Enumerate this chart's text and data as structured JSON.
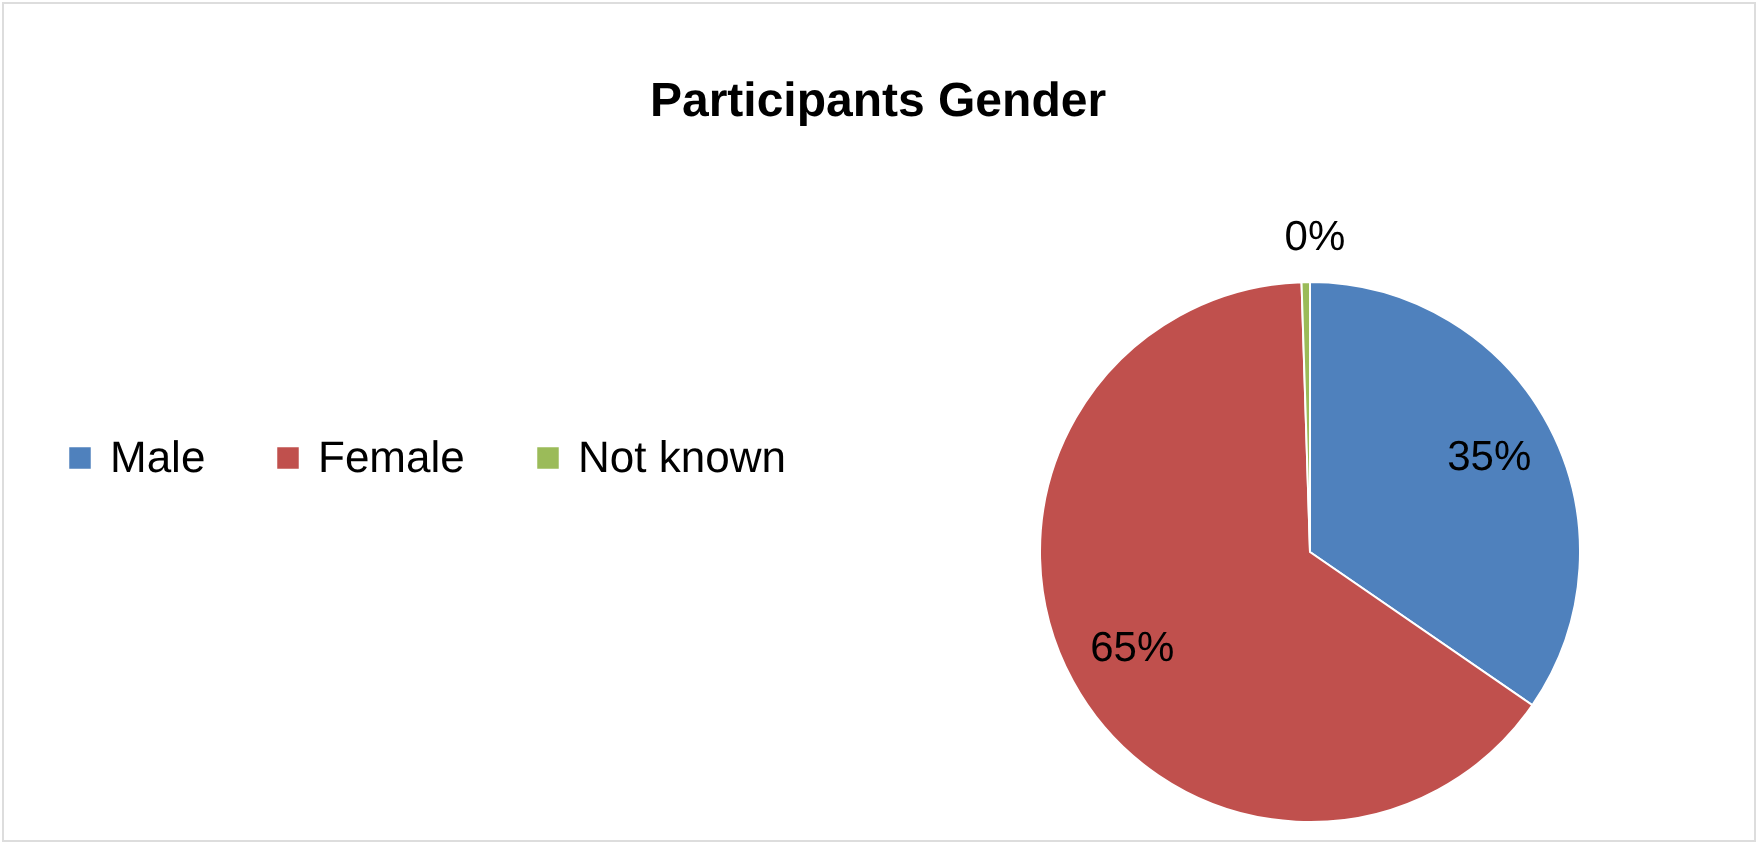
{
  "chart_data": {
    "type": "pie",
    "title": "Participants Gender",
    "categories": [
      "Male",
      "Female",
      "Not known"
    ],
    "values": [
      34.6,
      64.9,
      0.5
    ],
    "value_labels": [
      "35%",
      "65%",
      "0%"
    ],
    "colors": [
      "#4f81bd",
      "#c0504d",
      "#9bbb59"
    ],
    "legend": "left"
  }
}
